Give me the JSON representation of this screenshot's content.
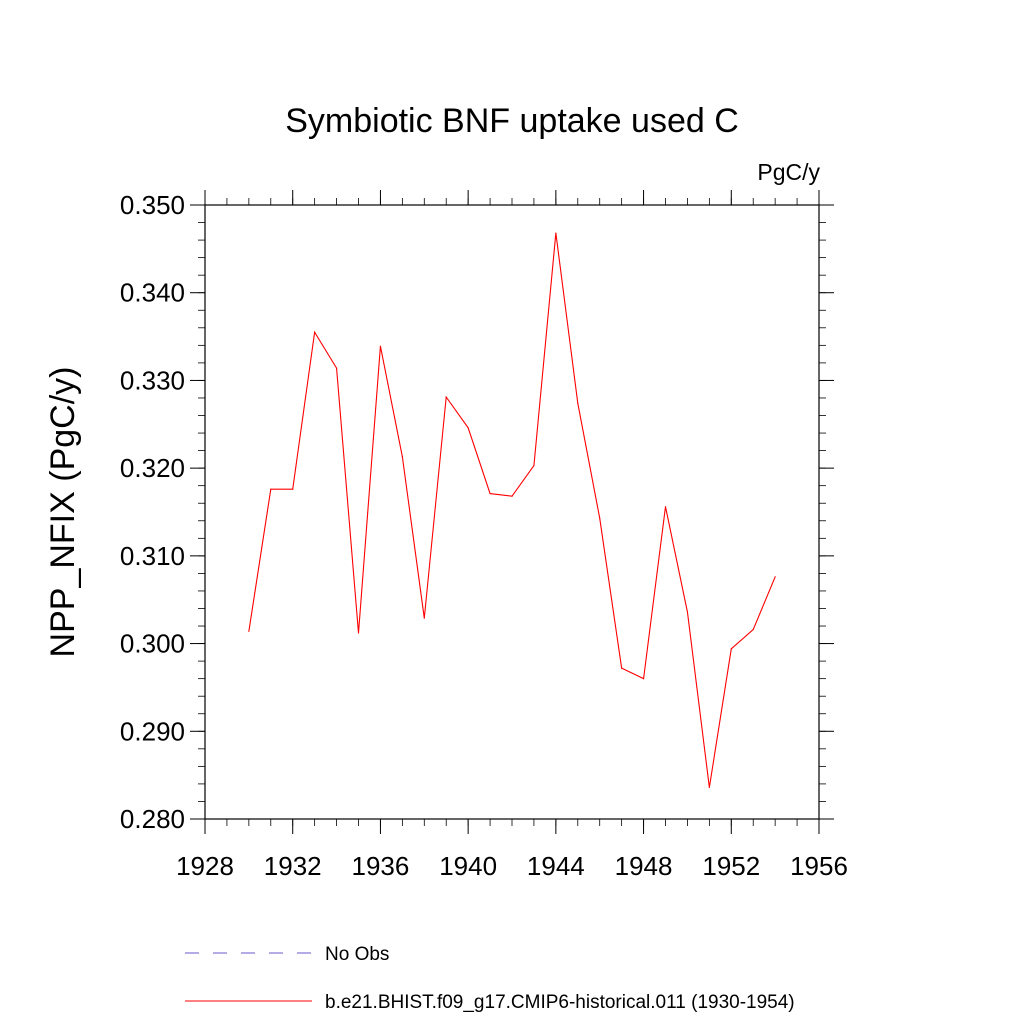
{
  "chart_data": {
    "type": "line",
    "title": "Symbiotic BNF uptake used C",
    "units_label": "PgC/y",
    "ylabel": "NPP_NFIX  (PgC/y)",
    "xlabel": "",
    "xlim": [
      1928,
      1956
    ],
    "ylim": [
      0.28,
      0.35
    ],
    "x_ticks": [
      1928,
      1932,
      1936,
      1940,
      1944,
      1948,
      1952,
      1956
    ],
    "x_tick_labels": [
      "1928",
      "1932",
      "1936",
      "1940",
      "1944",
      "1948",
      "1952",
      "1956"
    ],
    "y_ticks": [
      0.28,
      0.29,
      0.3,
      0.31,
      0.32,
      0.33,
      0.34,
      0.35
    ],
    "y_tick_labels": [
      "0.280",
      "0.290",
      "0.300",
      "0.310",
      "0.320",
      "0.330",
      "0.340",
      "0.350"
    ],
    "grid": false,
    "legend_position": "bottom",
    "series": [
      {
        "name": "b.e21.BHIST.f09_g17.CMIP6-historical.011 (1930-1954)",
        "color": "#ff0000",
        "style": "solid",
        "x": [
          1930,
          1931,
          1932,
          1933,
          1934,
          1935,
          1936,
          1937,
          1938,
          1939,
          1940,
          1941,
          1942,
          1943,
          1944,
          1945,
          1946,
          1947,
          1948,
          1949,
          1950,
          1951,
          1952,
          1953,
          1954
        ],
        "y": [
          0.3014,
          0.3176,
          0.3176,
          0.3355,
          0.3314,
          0.3012,
          0.3339,
          0.3213,
          0.3029,
          0.3281,
          0.3246,
          0.3171,
          0.3168,
          0.3203,
          0.3468,
          0.3274,
          0.3143,
          0.2972,
          0.296,
          0.3156,
          0.3036,
          0.2836,
          0.2994,
          0.3016,
          0.3076
        ]
      }
    ],
    "legend": [
      {
        "label": "No Obs",
        "color": "#6a5acd",
        "style": "dashed"
      },
      {
        "label": "b.e21.BHIST.f09_g17.CMIP6-historical.011 (1930-1954)",
        "color": "#ff0000",
        "style": "solid"
      }
    ]
  }
}
